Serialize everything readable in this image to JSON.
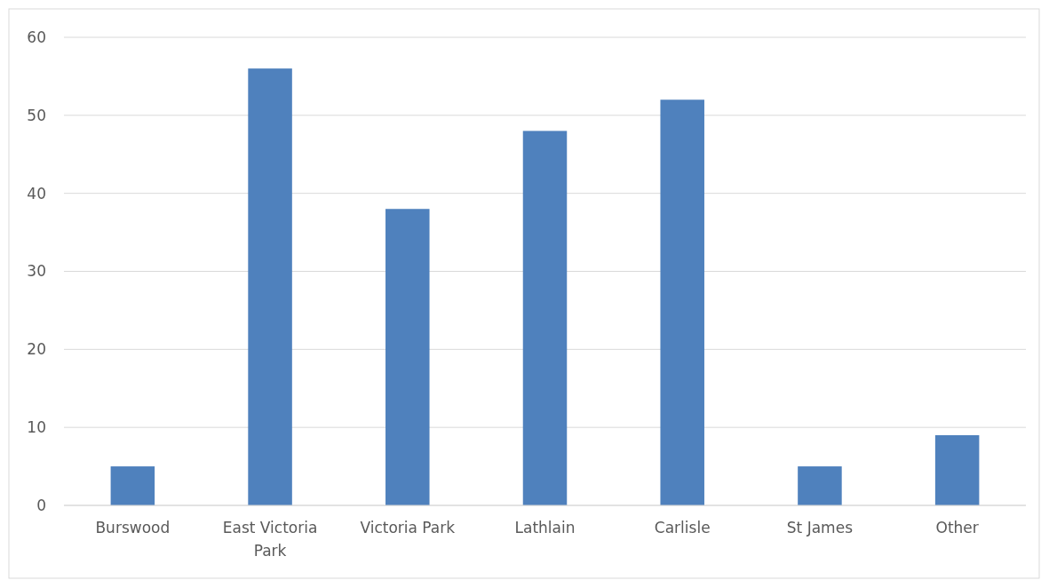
{
  "chart_data": {
    "type": "bar",
    "categories": [
      "Burswood",
      "East Victoria Park",
      "Victoria Park",
      "Lathlain",
      "Carlisle",
      "St James",
      "Other"
    ],
    "values": [
      5,
      56,
      38,
      48,
      52,
      5,
      9
    ],
    "color": "#4f81bd",
    "ylim": [
      0,
      60
    ],
    "yticks": [
      0,
      10,
      20,
      30,
      40,
      50,
      60
    ],
    "grid": "y"
  }
}
